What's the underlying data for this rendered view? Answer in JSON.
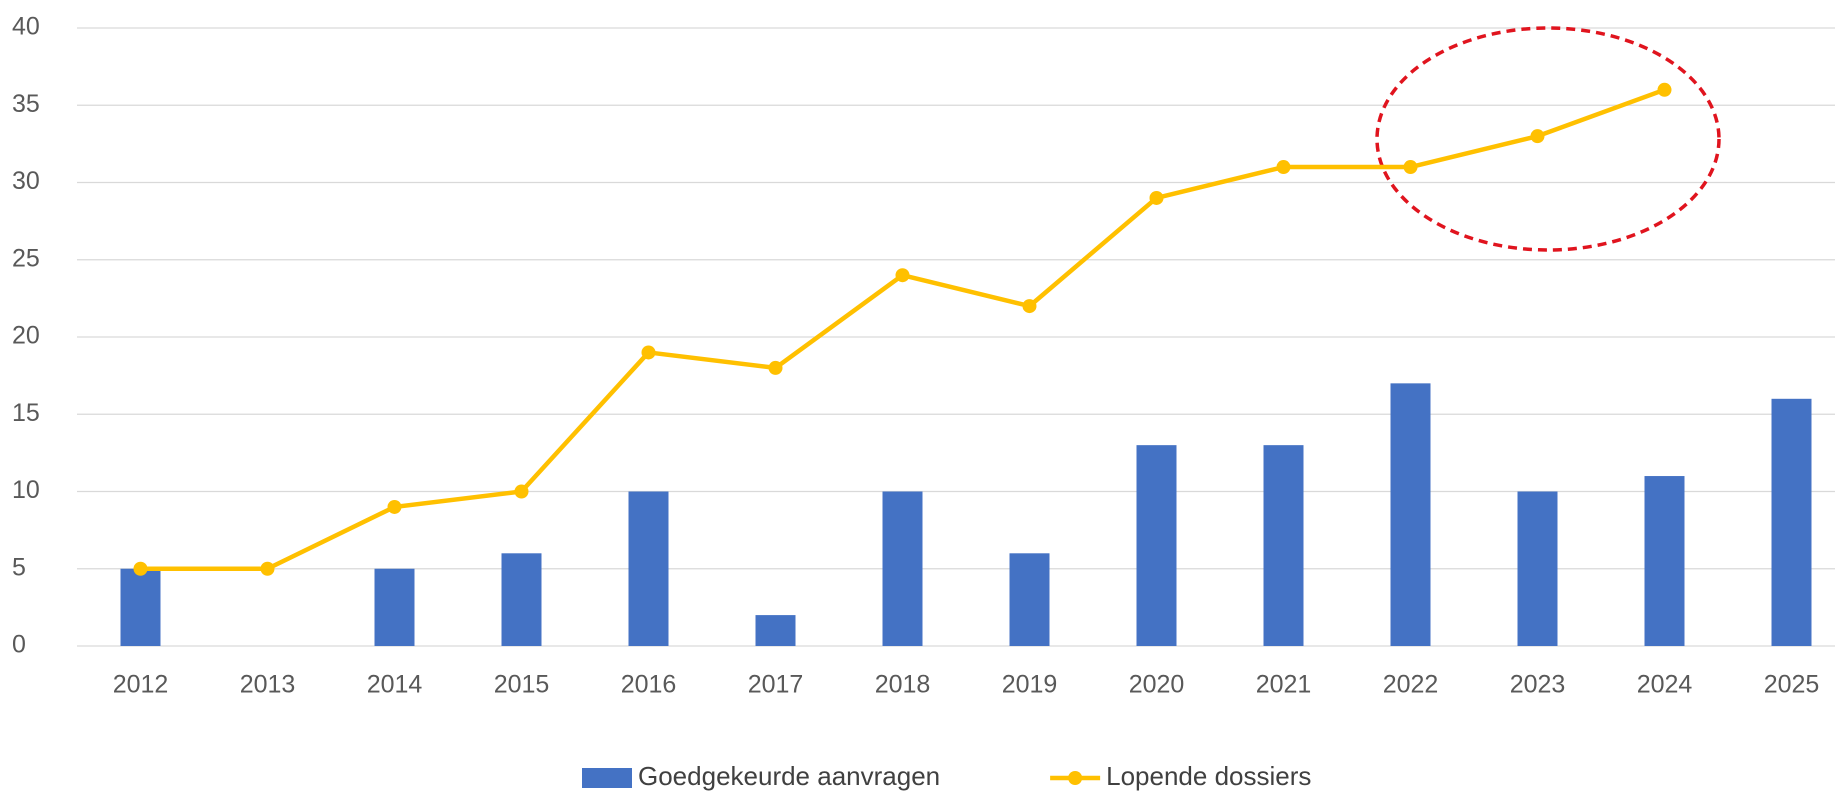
{
  "chart_data": {
    "type": "bar_line",
    "categories": [
      "2012",
      "2013",
      "2014",
      "2015",
      "2016",
      "2017",
      "2018",
      "2019",
      "2020",
      "2021",
      "2022",
      "2023",
      "2024",
      "2025"
    ],
    "series": [
      {
        "name": "Goedgekeurde aanvragen",
        "type": "bar",
        "color": "#4472c4",
        "values": [
          5,
          0,
          5,
          6,
          10,
          2,
          10,
          6,
          13,
          13,
          17,
          10,
          11,
          16
        ]
      },
      {
        "name": "Lopende dossiers",
        "type": "line",
        "color": "#ffc000",
        "values": [
          5,
          5,
          9,
          10,
          19,
          18,
          24,
          22,
          29,
          31,
          31,
          33,
          36,
          null
        ]
      }
    ],
    "ylim": [
      0,
      40
    ],
    "yticks": [
      0,
      5,
      10,
      15,
      20,
      25,
      30,
      35,
      40
    ],
    "grid": true,
    "legend": "bottom"
  }
}
